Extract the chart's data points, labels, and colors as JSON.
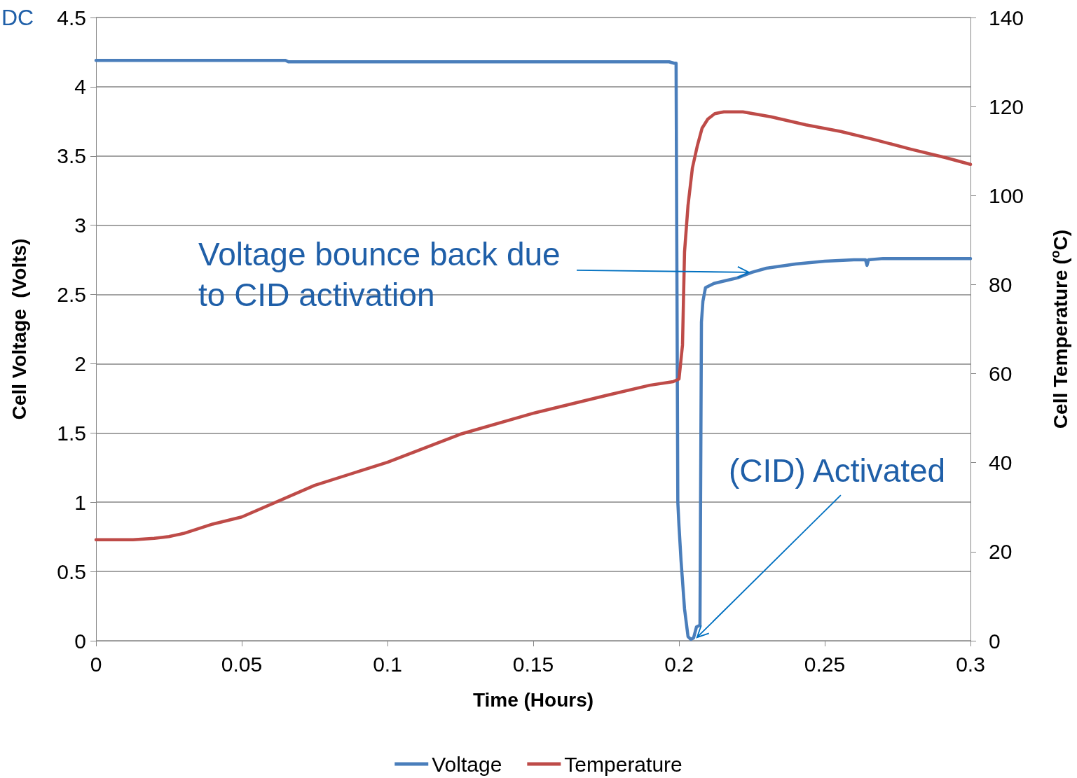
{
  "chart_data": {
    "type": "line",
    "xlabel": "Time (Hours)",
    "ylabel": "Cell Voltage  (Volts)",
    "y2label": "Cell Temperature ($^{o}$C)",
    "xlim": [
      0,
      0.3
    ],
    "xticks": [
      0,
      0.05,
      0.1,
      0.15,
      0.2,
      0.25,
      0.3
    ],
    "ylim": [
      0,
      4.5
    ],
    "yticks": [
      0,
      0.5,
      1,
      1.5,
      2,
      2.5,
      3,
      3.5,
      4,
      4.5
    ],
    "y2lim": [
      0,
      140
    ],
    "y2ticks": [
      0,
      20,
      40,
      60,
      80,
      100,
      120,
      140
    ],
    "grid": "y",
    "legend": "bottom",
    "marker": "none",
    "line_style": "solid",
    "annotations": [
      "DC",
      {
        "text": "Voltage bounce back due to CID activation",
        "x": 0.225,
        "y": 2.66
      },
      {
        "text": "(CID) Activated",
        "x": 0.2055,
        "y": 0.01
      }
    ],
    "series": [
      {
        "name": "Voltage",
        "color": "#4a7ebb",
        "x": [
          0,
          0.065,
          0.066,
          0.1966,
          0.1983,
          0.199,
          0.1996,
          0.2,
          0.2007,
          0.2019,
          0.2031,
          0.2041,
          0.205,
          0.206,
          0.207,
          0.2072,
          0.2077,
          0.2082,
          0.2091,
          0.212,
          0.216,
          0.22,
          0.225,
          0.23,
          0.24,
          0.25,
          0.26,
          0.264,
          0.2645,
          0.265,
          0.27,
          0.3
        ],
        "values": [
          4.19,
          4.19,
          4.18,
          4.18,
          4.17,
          4.17,
          1.0,
          0.83,
          0.58,
          0.23,
          0.03,
          0.01,
          0.02,
          0.1,
          0.11,
          0.11,
          2.3,
          2.45,
          2.55,
          2.58,
          2.6,
          2.62,
          2.66,
          2.69,
          2.72,
          2.74,
          2.75,
          2.75,
          2.71,
          2.75,
          2.76,
          2.76
        ]
      },
      {
        "name": "Temperature",
        "color": "#be4b48",
        "axis": "y2",
        "x": [
          0,
          0.0127,
          0.02,
          0.025,
          0.03,
          0.04,
          0.05,
          0.075,
          0.1,
          0.125,
          0.15,
          0.175,
          0.19,
          0.198,
          0.2,
          0.2012,
          0.2019,
          0.2031,
          0.2046,
          0.2063,
          0.2079,
          0.2099,
          0.2123,
          0.2154,
          0.2219,
          0.2315,
          0.2435,
          0.2555,
          0.2675,
          0.2796,
          0.2916,
          0.3
        ],
        "values": [
          22.7,
          22.7,
          23,
          23.4,
          24.1,
          26.2,
          27.8,
          34.9,
          40.1,
          46.4,
          51.1,
          55.1,
          57.4,
          58.2,
          58.8,
          66.4,
          87.3,
          97.8,
          106.2,
          111.2,
          115.1,
          117.2,
          118.4,
          118.8,
          118.8,
          117.7,
          115.9,
          114.4,
          112.5,
          110.4,
          108.5,
          107.0
        ]
      }
    ]
  }
}
